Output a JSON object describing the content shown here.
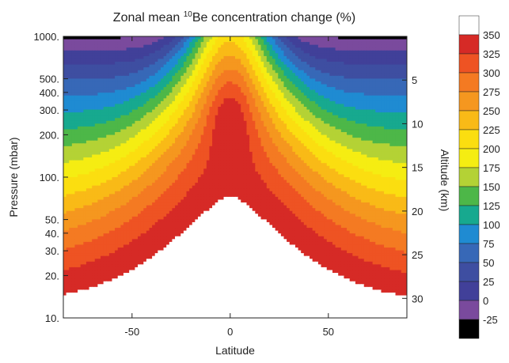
{
  "chart_data": {
    "type": "heatmap",
    "title_prefix": "Zonal mean ",
    "title_superscript": "10",
    "title_suffix": "Be concentration change (%)",
    "xlabel": "Latitude",
    "ylabel": "Pressure (mbar)",
    "y2label": "Altitude (km)",
    "xlim": [
      -85,
      90
    ],
    "xticks": [
      -50,
      0,
      50
    ],
    "xtick_labels": [
      "-50",
      "0",
      "50"
    ],
    "y_scale": "log",
    "ylim": [
      1000,
      10
    ],
    "yticks": [
      10,
      20,
      30,
      40,
      50,
      100,
      200,
      300,
      400,
      500,
      1000
    ],
    "ytick_labels": [
      "10.",
      "20.",
      "30.",
      "40.",
      "50.",
      "100.",
      "200.",
      "300.",
      "400.",
      "500.",
      "1000."
    ],
    "y2ticks": [
      5,
      10,
      15,
      20,
      25,
      30
    ],
    "y2tick_labels": [
      "5",
      "10",
      "15",
      "20",
      "25",
      "30"
    ],
    "colorbar": {
      "labels": [
        "350",
        "325",
        "300",
        "275",
        "250",
        "225",
        "200",
        "175",
        "150",
        "125",
        "100",
        "75",
        "50",
        "25",
        "0",
        "-25"
      ],
      "colors": [
        "#ffffff",
        "#d62a26",
        "#ee5323",
        "#f47a22",
        "#f5971f",
        "#f9ba17",
        "#fbde10",
        "#f5ed12",
        "#b4d235",
        "#4db748",
        "#17a98f",
        "#1f8bd2",
        "#3768b7",
        "#3e4ea1",
        "#414099",
        "#7a4a9d",
        "#000000"
      ]
    }
  }
}
